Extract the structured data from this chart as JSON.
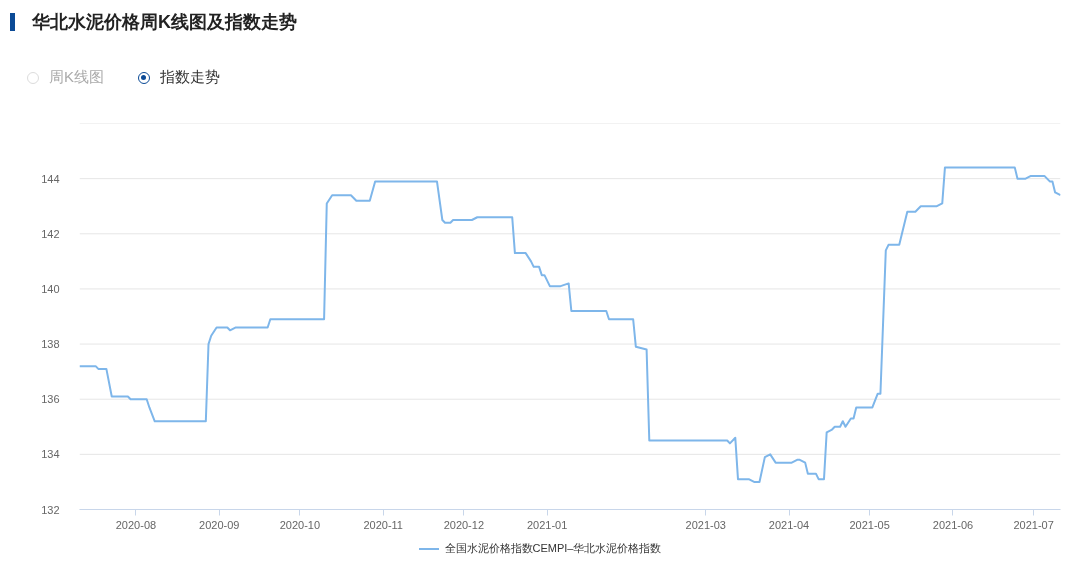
{
  "chart_data": {
    "type": "line",
    "title": "华北水泥价格周K线图及指数走势",
    "annotations": [
      "周K线图",
      "指数走势"
    ],
    "x": [
      "2020-07-11",
      "2020-07-17",
      "2020-07-18",
      "2020-07-21",
      "2020-07-23",
      "2020-07-29",
      "2020-07-30",
      "2020-08-05",
      "2020-08-06",
      "2020-08-08",
      "2020-08-27",
      "2020-08-28",
      "2020-08-29",
      "2020-08-31",
      "2020-09-04",
      "2020-09-05",
      "2020-09-07",
      "2020-09-19",
      "2020-09-20",
      "2020-09-22",
      "2020-10-10",
      "2020-10-11",
      "2020-10-13",
      "2020-10-20",
      "2020-10-22",
      "2020-10-27",
      "2020-10-29",
      "2020-11-21",
      "2020-11-23",
      "2020-11-24",
      "2020-11-26",
      "2020-11-27",
      "2020-11-30",
      "2020-12-04",
      "2020-12-06",
      "2020-12-19",
      "2020-12-20",
      "2020-12-24",
      "2020-12-26",
      "2020-12-27",
      "2020-12-29",
      "2020-12-30",
      "2020-12-31",
      "2021-01-02",
      "2021-01-06",
      "2021-01-09",
      "2021-01-10",
      "2021-01-23",
      "2021-01-24",
      "2021-02-02",
      "2021-02-03",
      "2021-02-07",
      "2021-02-08",
      "2021-03-09",
      "2021-03-10",
      "2021-03-12",
      "2021-03-13",
      "2021-03-17",
      "2021-03-19",
      "2021-03-21",
      "2021-03-23",
      "2021-03-25",
      "2021-03-27",
      "2021-04-02",
      "2021-04-04",
      "2021-04-05",
      "2021-04-07",
      "2021-04-08",
      "2021-04-11",
      "2021-04-12",
      "2021-04-14",
      "2021-04-15",
      "2021-04-17",
      "2021-04-18",
      "2021-04-20",
      "2021-04-21",
      "2021-04-22",
      "2021-04-24",
      "2021-04-25",
      "2021-04-26",
      "2021-05-02",
      "2021-05-04",
      "2021-05-05",
      "2021-05-07",
      "2021-05-08",
      "2021-05-12",
      "2021-05-15",
      "2021-05-18",
      "2021-05-20",
      "2021-05-26",
      "2021-05-28",
      "2021-05-29",
      "2021-06-24",
      "2021-06-25",
      "2021-06-28",
      "2021-06-30",
      "2021-07-05",
      "2021-07-07",
      "2021-07-08",
      "2021-07-09",
      "2021-07-11"
    ],
    "series": [
      {
        "name": "全国水泥价格指数CEMPI–华北水泥价格指数",
        "color": "#7eb6ea",
        "values": [
          137.2,
          137.2,
          137.1,
          137.1,
          136.1,
          136.1,
          136.0,
          136.0,
          135.7,
          135.2,
          135.2,
          138.0,
          138.3,
          138.6,
          138.6,
          138.5,
          138.6,
          138.6,
          138.9,
          138.9,
          138.9,
          143.1,
          143.4,
          143.4,
          143.2,
          143.2,
          143.9,
          143.9,
          142.5,
          142.4,
          142.4,
          142.5,
          142.5,
          142.5,
          142.6,
          142.6,
          141.3,
          141.3,
          141.0,
          140.8,
          140.8,
          140.5,
          140.5,
          140.1,
          140.1,
          140.2,
          139.2,
          139.2,
          138.9,
          138.9,
          137.9,
          137.8,
          134.5,
          134.5,
          134.4,
          134.6,
          133.1,
          133.1,
          133.0,
          133.0,
          133.9,
          134.0,
          133.7,
          133.7,
          133.8,
          133.8,
          133.7,
          133.3,
          133.3,
          133.1,
          133.1,
          134.8,
          134.9,
          135.0,
          135.0,
          135.2,
          135.0,
          135.3,
          135.3,
          135.7,
          135.7,
          136.2,
          136.2,
          141.4,
          141.6,
          141.6,
          142.8,
          142.8,
          143.0,
          143.0,
          143.1,
          144.4,
          144.4,
          144.0,
          144.0,
          144.1,
          144.1,
          143.9,
          143.9,
          143.5,
          143.4
        ]
      }
    ],
    "xlim": [
      "2020-07-11",
      "2021-07-11"
    ],
    "xticks": [
      "2020-08",
      "2020-09",
      "2020-10",
      "2020-11",
      "2020-12",
      "2021-01",
      "2021-03",
      "2021-04",
      "2021-05",
      "2021-06",
      "2021-07"
    ],
    "ylim": [
      132,
      146
    ],
    "yticks": [
      132,
      134,
      136,
      138,
      140,
      142,
      144,
      {
        "value": 146,
        "label": null
      }
    ],
    "grid": "y",
    "legend": "bottom",
    "marker": "none",
    "line_style": "solid"
  }
}
